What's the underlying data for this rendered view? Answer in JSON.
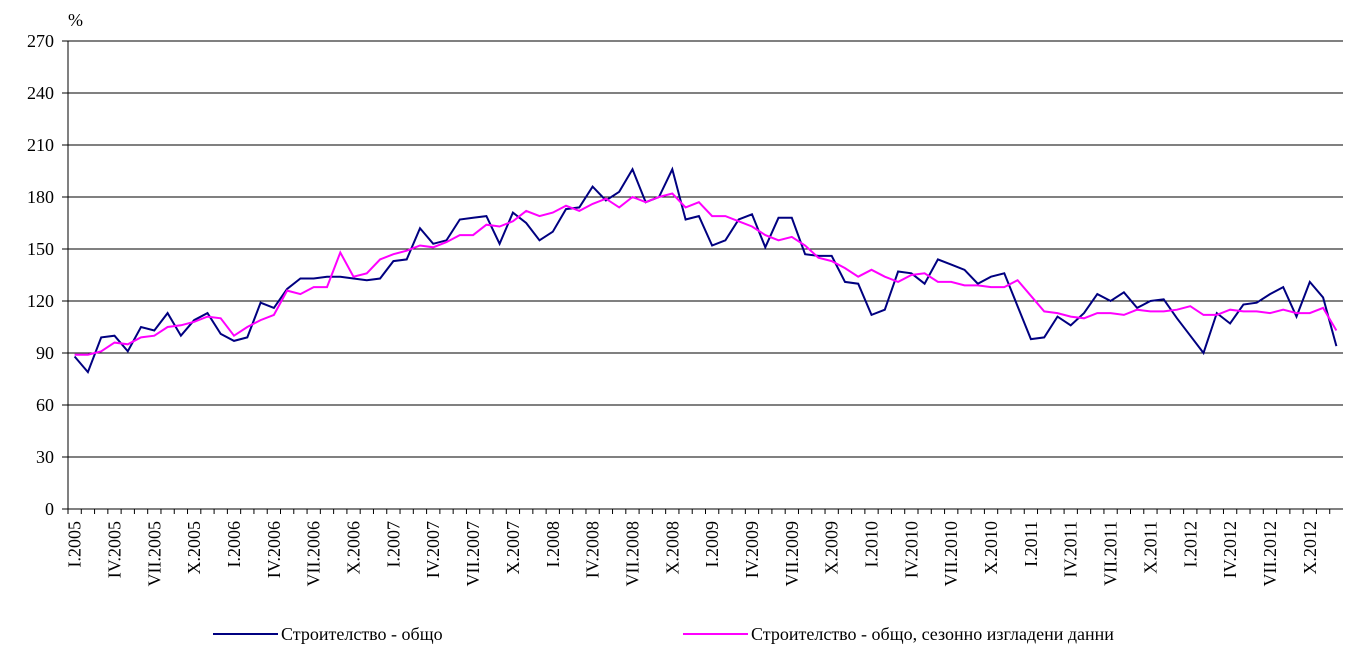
{
  "chart_data": {
    "type": "line",
    "y_axis_label": "%",
    "categories": [
      "I.2005",
      null,
      null,
      "IV.2005",
      null,
      null,
      "VII.2005",
      null,
      null,
      "X.2005",
      null,
      null,
      "I.2006",
      null,
      null,
      "IV.2006",
      null,
      null,
      "VII.2006",
      null,
      null,
      "X.2006",
      null,
      null,
      "I.2007",
      null,
      null,
      "IV.2007",
      null,
      null,
      "VII.2007",
      null,
      null,
      "X.2007",
      null,
      null,
      "I.2008",
      null,
      null,
      "IV.2008",
      null,
      null,
      "VII.2008",
      null,
      null,
      "X.2008",
      null,
      null,
      "I.2009",
      null,
      null,
      "IV.2009",
      null,
      null,
      "VII.2009",
      null,
      null,
      "X.2009",
      null,
      null,
      "I.2010",
      null,
      null,
      "IV.2010",
      null,
      null,
      "VII.2010",
      null,
      null,
      "X.2010",
      null,
      null,
      "I.2011",
      null,
      null,
      "IV.2011",
      null,
      null,
      "VII.2011",
      null,
      null,
      "X.2011",
      null,
      null,
      "I.2012",
      null,
      null,
      "IV.2012",
      null,
      null,
      "VII.2012",
      null,
      null,
      "X.2012",
      null,
      null
    ],
    "series": [
      {
        "name": "Строителство - общо",
        "color": "#000080",
        "values": [
          88,
          79,
          99,
          100,
          91,
          105,
          103,
          113,
          100,
          109,
          113,
          101,
          97,
          99,
          119,
          116,
          127,
          133,
          133,
          134,
          134,
          133,
          132,
          133,
          143,
          144,
          162,
          153,
          155,
          167,
          168,
          169,
          153,
          171,
          165,
          155,
          160,
          173,
          174,
          186,
          178,
          183,
          196,
          177,
          180,
          196,
          167,
          169,
          152,
          155,
          167,
          170,
          151,
          168,
          168,
          147,
          146,
          146,
          131,
          130,
          112,
          115,
          137,
          136,
          130,
          144,
          141,
          138,
          130,
          134,
          136,
          117,
          98,
          99,
          111,
          106,
          113,
          124,
          120,
          125,
          116,
          120,
          121,
          110,
          100,
          90,
          113,
          107,
          118,
          119,
          124,
          128,
          111,
          131,
          122,
          94
        ]
      },
      {
        "name": "Строителство - общо, сезонно изгладени данни",
        "color": "#ff00ff",
        "values": [
          89,
          89,
          91,
          96,
          95,
          99,
          100,
          105,
          106,
          108,
          111,
          110,
          100,
          105,
          109,
          112,
          126,
          124,
          128,
          128,
          148,
          134,
          136,
          144,
          147,
          149,
          152,
          151,
          154,
          158,
          158,
          164,
          163,
          166,
          172,
          169,
          171,
          175,
          172,
          176,
          179,
          174,
          180,
          177,
          180,
          182,
          174,
          177,
          169,
          169,
          166,
          163,
          158,
          155,
          157,
          152,
          145,
          143,
          139,
          134,
          138,
          134,
          131,
          135,
          136,
          131,
          131,
          129,
          129,
          128,
          128,
          132,
          123,
          114,
          113,
          111,
          110,
          113,
          113,
          112,
          115,
          114,
          114,
          115,
          117,
          112,
          112,
          115,
          114,
          114,
          113,
          115,
          113,
          113,
          116,
          103
        ]
      }
    ],
    "ylim": [
      0,
      270
    ],
    "yticks": [
      0,
      30,
      60,
      90,
      120,
      150,
      180,
      210,
      240,
      270
    ],
    "grid": true,
    "legend": "bottom"
  }
}
